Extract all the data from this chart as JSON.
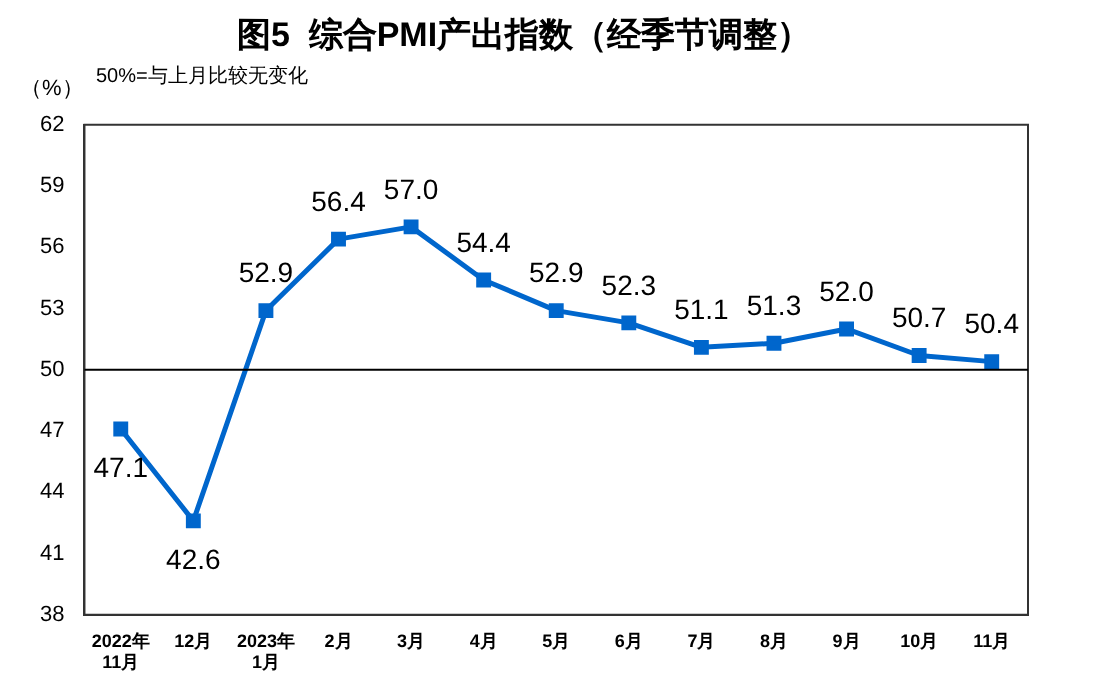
{
  "chart_data": {
    "type": "line",
    "title": "图5  综合PMI产出指数（经季节调整）",
    "ylabel": "（%）",
    "annotations": [
      "50%=与上月比较无变化"
    ],
    "categories": [
      "2022年\n11月",
      "12月",
      "2023年\n1月",
      "2月",
      "3月",
      "4月",
      "5月",
      "6月",
      "7月",
      "8月",
      "9月",
      "10月",
      "11月"
    ],
    "series": [
      {
        "color": "#0066cc",
        "values": [
          47.1,
          42.6,
          52.9,
          56.4,
          57.0,
          54.4,
          52.9,
          52.3,
          51.1,
          51.3,
          52.0,
          50.7,
          50.4
        ],
        "value_labels": [
          "47.1",
          "42.6",
          "52.9",
          "56.4",
          "57.0",
          "54.4",
          "52.9",
          "52.3",
          "51.1",
          "51.3",
          "52.0",
          "50.7",
          "50.4"
        ]
      }
    ],
    "ylim": [
      38,
      62
    ],
    "yticks": [
      38,
      41,
      44,
      47,
      50,
      53,
      56,
      59,
      62
    ],
    "ref_lines": [
      {
        "axis": "y",
        "value": 50,
        "color": "#000000"
      }
    ],
    "marker": "square",
    "grid": false,
    "legend": false
  }
}
